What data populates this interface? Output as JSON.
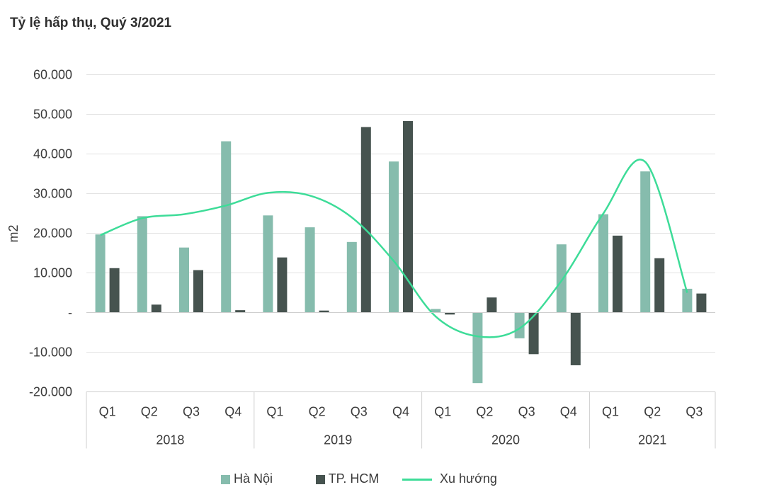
{
  "chart_data": {
    "type": "bar",
    "title": "Tỷ lệ hấp thụ, Quý 3/2021",
    "ylabel": "m2",
    "xlabel": "",
    "ylim": [
      -20000,
      60000
    ],
    "y_ticks": [
      60000,
      50000,
      40000,
      30000,
      20000,
      10000,
      0,
      -10000,
      -20000
    ],
    "y_tick_labels": [
      "60.000",
      "50.000",
      "40.000",
      "30.000",
      "20.000",
      "10.000",
      "-",
      "-10.000",
      "-20.000"
    ],
    "categories": [
      "Q1",
      "Q2",
      "Q3",
      "Q4",
      "Q1",
      "Q2",
      "Q3",
      "Q4",
      "Q1",
      "Q2",
      "Q3",
      "Q4",
      "Q1",
      "Q2",
      "Q3"
    ],
    "groups": [
      {
        "label": "2018",
        "count": 4
      },
      {
        "label": "2019",
        "count": 4
      },
      {
        "label": "2020",
        "count": 4
      },
      {
        "label": "2021",
        "count": 3
      }
    ],
    "series": [
      {
        "name": "Hà Nội",
        "type": "bar",
        "color": "#86bcad",
        "values": [
          19700,
          24300,
          16400,
          43200,
          24500,
          21500,
          17800,
          38100,
          900,
          -17800,
          -6500,
          17200,
          24800,
          35600,
          6000
        ]
      },
      {
        "name": "TP. HCM",
        "type": "bar",
        "color": "#46534f",
        "values": [
          11200,
          2000,
          10700,
          600,
          13900,
          500,
          46800,
          48300,
          -500,
          3800,
          -10500,
          -13300,
          19400,
          13700,
          4800
        ]
      },
      {
        "name": "Xu hướng",
        "type": "line",
        "color": "#3ddc98",
        "values": [
          19500,
          23800,
          24800,
          27000,
          30200,
          29500,
          24000,
          13000,
          -1000,
          -6000,
          -4000,
          8000,
          25000,
          38000,
          5000
        ]
      }
    ],
    "legend_position": "bottom",
    "grid": true
  }
}
